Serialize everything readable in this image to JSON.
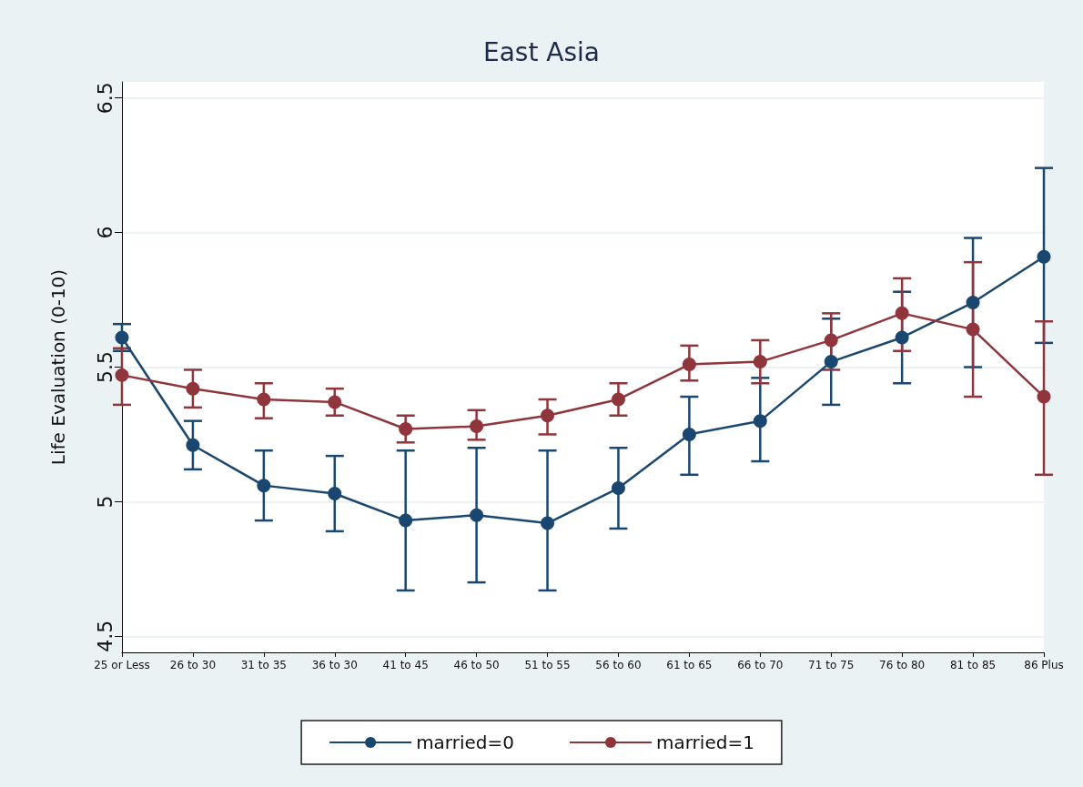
{
  "chart_data": {
    "type": "line",
    "title": "East Asia",
    "ylabel": "Life Evaluation (0-10)",
    "categories": [
      "25 or Less",
      "26 to 30",
      "31 to 35",
      "36 to 30",
      "41 to 45",
      "46 to 50",
      "51 to 55",
      "56 to 60",
      "61 to 65",
      "66 to 70",
      "71 to 75",
      "76 to 80",
      "81 to 85",
      "86 Plus"
    ],
    "series": [
      {
        "name": "married=0",
        "color": "#1a476f",
        "values": [
          5.61,
          5.21,
          5.06,
          5.03,
          4.93,
          4.95,
          4.92,
          5.05,
          5.25,
          5.3,
          5.52,
          5.61,
          5.74,
          5.91
        ],
        "errors": [
          [
            5.56,
            5.66
          ],
          [
            5.12,
            5.3
          ],
          [
            4.93,
            5.19
          ],
          [
            4.89,
            5.17
          ],
          [
            4.67,
            5.19
          ],
          [
            4.7,
            5.2
          ],
          [
            4.67,
            5.19
          ],
          [
            4.9,
            5.2
          ],
          [
            5.1,
            5.39
          ],
          [
            5.15,
            5.46
          ],
          [
            5.36,
            5.68
          ],
          [
            5.44,
            5.78
          ],
          [
            5.5,
            5.98
          ],
          [
            5.59,
            6.24
          ]
        ]
      },
      {
        "name": "married=1",
        "color": "#90353b",
        "values": [
          5.47,
          5.42,
          5.38,
          5.37,
          5.27,
          5.28,
          5.32,
          5.38,
          5.51,
          5.52,
          5.6,
          5.7,
          5.64,
          5.39
        ],
        "errors": [
          [
            5.36,
            5.57
          ],
          [
            5.35,
            5.49
          ],
          [
            5.31,
            5.44
          ],
          [
            5.32,
            5.42
          ],
          [
            5.22,
            5.32
          ],
          [
            5.23,
            5.34
          ],
          [
            5.25,
            5.38
          ],
          [
            5.32,
            5.44
          ],
          [
            5.45,
            5.58
          ],
          [
            5.44,
            5.6
          ],
          [
            5.49,
            5.7
          ],
          [
            5.56,
            5.83
          ],
          [
            5.39,
            5.89
          ],
          [
            5.1,
            5.67
          ]
        ]
      }
    ],
    "ylim": [
      4.44,
      6.56
    ],
    "yticks": [
      4.5,
      5,
      5.5,
      6,
      6.5
    ],
    "grid": "y",
    "legend": "bottom",
    "marker": "circle",
    "line_style": "solid"
  }
}
